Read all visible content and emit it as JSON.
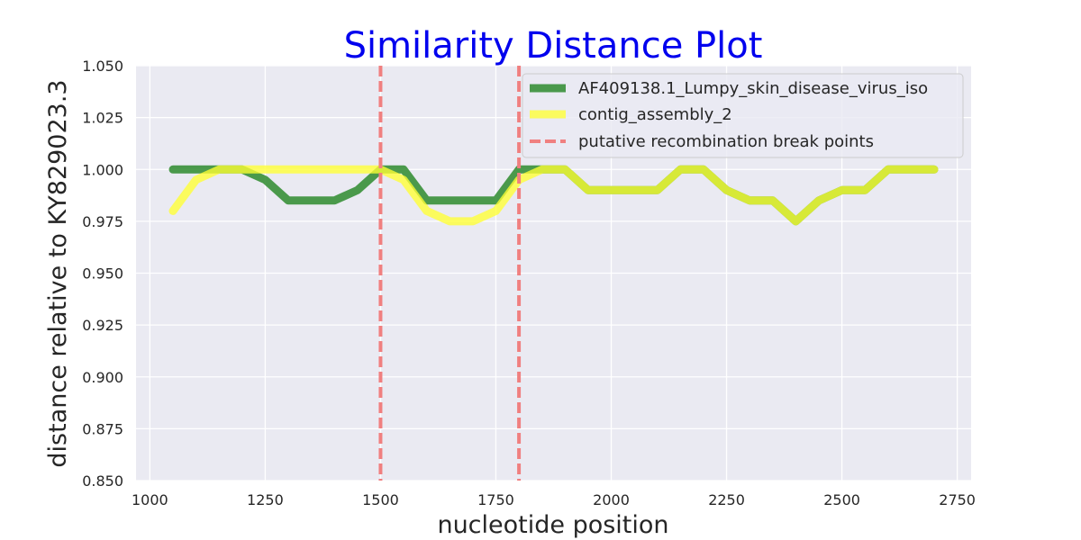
{
  "chart_data": {
    "type": "line",
    "title": "Similarity Distance Plot",
    "title_color": "#0000ee",
    "xlabel": "nucleotide position",
    "ylabel": "distance relative to KY829023.3",
    "xlim": [
      970,
      2780
    ],
    "ylim": [
      0.85,
      1.05
    ],
    "xticks": [
      1000,
      1250,
      1500,
      1750,
      2000,
      2250,
      2500,
      2750
    ],
    "yticks": [
      0.85,
      0.875,
      0.9,
      0.925,
      0.95,
      0.975,
      1.0,
      1.025,
      1.05
    ],
    "xtick_labels": [
      "1000",
      "1250",
      "1500",
      "1750",
      "2000",
      "2250",
      "2500",
      "2750"
    ],
    "ytick_labels": [
      "0.850",
      "0.875",
      "0.900",
      "0.925",
      "0.950",
      "0.975",
      "1.000",
      "1.025",
      "1.050"
    ],
    "grid": true,
    "background": "#eaeaf2",
    "legend_position": "top-right",
    "x": [
      1050,
      1100,
      1150,
      1200,
      1250,
      1300,
      1350,
      1400,
      1450,
      1500,
      1550,
      1600,
      1650,
      1700,
      1750,
      1800,
      1850,
      1900,
      1950,
      2000,
      2050,
      2100,
      2150,
      2200,
      2250,
      2300,
      2350,
      2400,
      2450,
      2500,
      2550,
      2600,
      2650,
      2700
    ],
    "series": [
      {
        "name": "AF409138.1_Lumpy_skin_disease_virus_iso",
        "color": "#2e8b2e",
        "values": [
          1.0,
          1.0,
          1.0,
          1.0,
          0.995,
          0.985,
          0.985,
          0.985,
          0.99,
          1.0,
          1.0,
          0.985,
          0.985,
          0.985,
          0.985,
          1.0,
          1.0,
          1.0,
          0.99,
          0.99,
          0.99,
          0.99,
          1.0,
          1.0,
          0.99,
          0.985,
          0.985,
          0.975,
          0.985,
          0.99,
          0.99,
          1.0,
          1.0,
          1.0
        ]
      },
      {
        "name": "contig_assembly_2",
        "color": "#ffff33",
        "values": [
          0.98,
          0.995,
          1.0,
          1.0,
          1.0,
          1.0,
          1.0,
          1.0,
          1.0,
          1.0,
          0.995,
          0.98,
          0.975,
          0.975,
          0.98,
          0.995,
          1.0,
          1.0,
          0.99,
          0.99,
          0.99,
          0.99,
          1.0,
          1.0,
          0.99,
          0.985,
          0.985,
          0.975,
          0.985,
          0.99,
          0.99,
          1.0,
          1.0,
          1.0
        ]
      }
    ],
    "vlines": {
      "name": "putative recombination break points",
      "color": "#f08080",
      "x": [
        1500,
        1800
      ]
    }
  }
}
